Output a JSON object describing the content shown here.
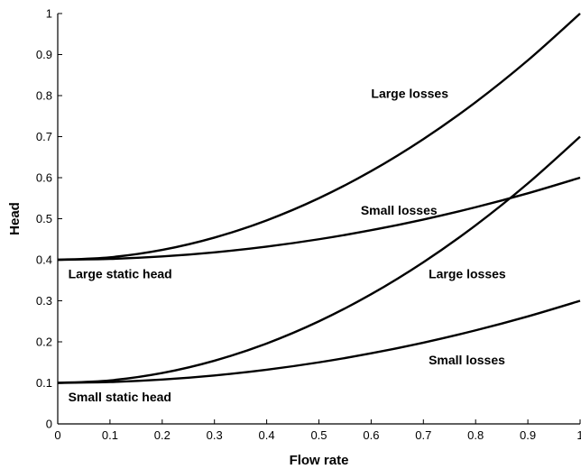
{
  "chart_data": {
    "type": "line",
    "xlabel": "Flow rate",
    "ylabel": "Head",
    "xlim": [
      0,
      1
    ],
    "ylim": [
      0,
      1
    ],
    "xticks": [
      "0",
      "0.1",
      "0.2",
      "0.3",
      "0.4",
      "0.5",
      "0.6",
      "0.7",
      "0.8",
      "0.9",
      "1"
    ],
    "yticks": [
      "0",
      "0.1",
      "0.2",
      "0.3",
      "0.4",
      "0.5",
      "0.6",
      "0.7",
      "0.8",
      "0.9",
      "1"
    ],
    "grid": false,
    "series": [
      {
        "x": [
          0,
          0.1,
          0.2,
          0.3,
          0.4,
          0.5,
          0.6,
          0.7,
          0.8,
          0.9,
          1.0
        ],
        "y": [
          0.4,
          0.406,
          0.424,
          0.454,
          0.496,
          0.55,
          0.616,
          0.694,
          0.784,
          0.886,
          1.0
        ]
      },
      {
        "x": [
          0,
          0.1,
          0.2,
          0.3,
          0.4,
          0.5,
          0.6,
          0.7,
          0.8,
          0.9,
          1.0
        ],
        "y": [
          0.4,
          0.402,
          0.408,
          0.418,
          0.432,
          0.45,
          0.472,
          0.498,
          0.528,
          0.562,
          0.6
        ]
      },
      {
        "x": [
          0,
          0.1,
          0.2,
          0.3,
          0.4,
          0.5,
          0.6,
          0.7,
          0.8,
          0.9,
          1.0
        ],
        "y": [
          0.1,
          0.106,
          0.124,
          0.154,
          0.196,
          0.25,
          0.316,
          0.394,
          0.484,
          0.586,
          0.7
        ]
      },
      {
        "x": [
          0,
          0.1,
          0.2,
          0.3,
          0.4,
          0.5,
          0.6,
          0.7,
          0.8,
          0.9,
          1.0
        ],
        "y": [
          0.1,
          0.102,
          0.108,
          0.118,
          0.132,
          0.15,
          0.172,
          0.198,
          0.228,
          0.262,
          0.3
        ]
      }
    ],
    "annotations": [
      {
        "text": "Large losses",
        "x": 0.6,
        "y": 0.795
      },
      {
        "text": "Small losses",
        "x": 0.58,
        "y": 0.51
      },
      {
        "text": "Large static head",
        "x": 0.02,
        "y": 0.355
      },
      {
        "text": "Large losses",
        "x": 0.71,
        "y": 0.355
      },
      {
        "text": "Small losses",
        "x": 0.71,
        "y": 0.145
      },
      {
        "text": "Small static head",
        "x": 0.02,
        "y": 0.055
      }
    ]
  }
}
